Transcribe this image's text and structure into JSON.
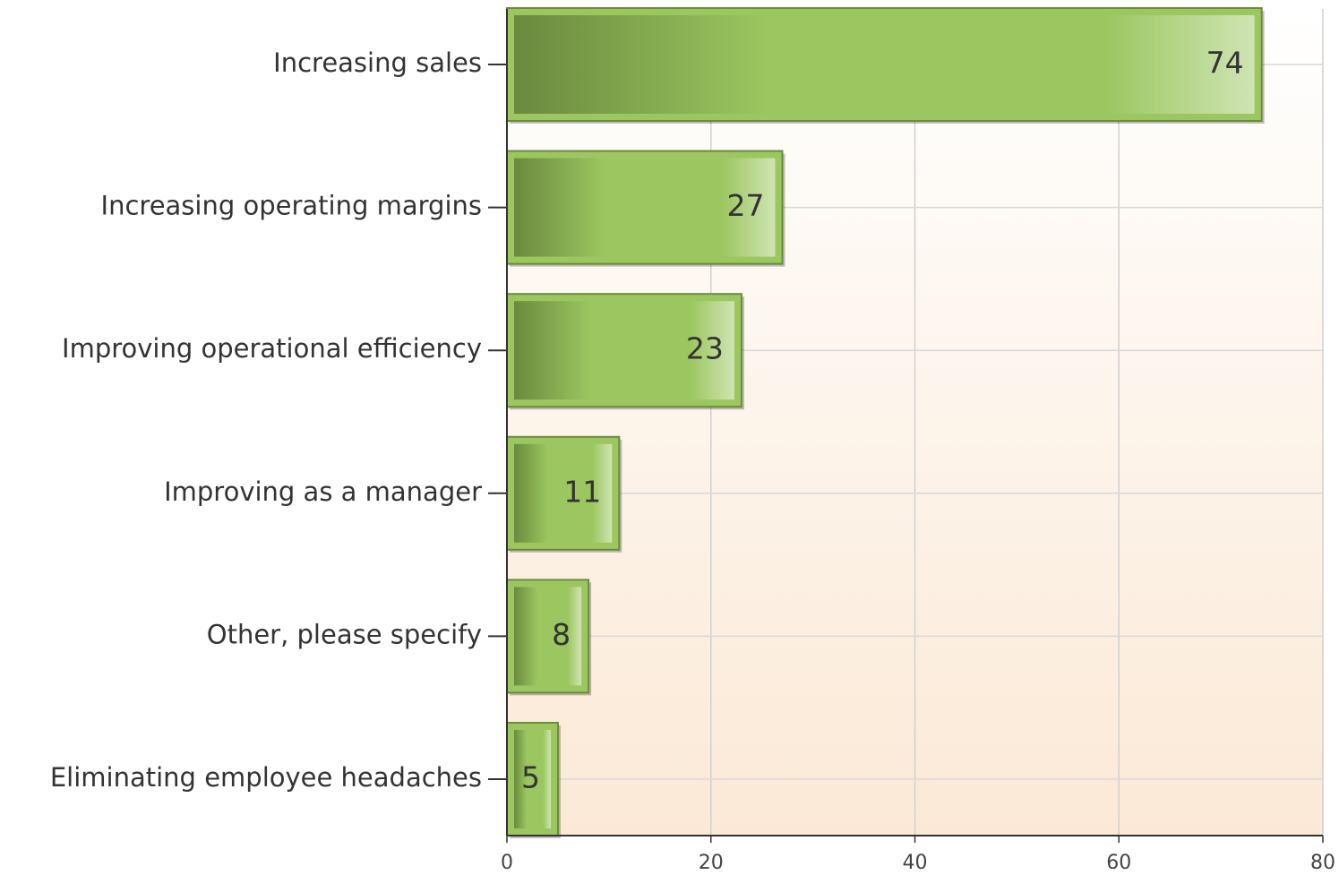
{
  "chart_data": {
    "type": "bar",
    "orientation": "horizontal",
    "categories": [
      "Increasing sales",
      "Increasing operating margins",
      "Improving operational efficiency",
      "Improving as a manager",
      "Other, please specify",
      "Eliminating employee headaches"
    ],
    "values": [
      74,
      27,
      23,
      11,
      8,
      5
    ],
    "color": "#9cc760",
    "xlim": [
      0,
      80
    ],
    "xticks": [
      0,
      20,
      40,
      60,
      80
    ],
    "grid": true,
    "data_labels": true
  }
}
